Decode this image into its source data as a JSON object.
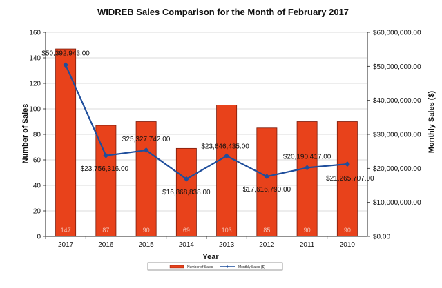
{
  "chart_data": {
    "type": "bar",
    "title": "WIDREB Sales Comparison for the Month of  February 2017",
    "xlabel": "Year",
    "ylabel_left": "Number of Sales",
    "ylabel_right": "Monthly Sales ($)",
    "categories": [
      "2017",
      "2016",
      "2015",
      "2014",
      "2013",
      "2012",
      "2011",
      "2010"
    ],
    "y_left_ticks": [
      "0",
      "20",
      "40",
      "60",
      "80",
      "100",
      "120",
      "140",
      "160"
    ],
    "y_right_ticks": [
      "$0.00",
      "$10,000,000.00",
      "$20,000,000.00",
      "$30,000,000.00",
      "$40,000,000.00",
      "$50,000,000.00",
      "$60,000,000.00"
    ],
    "ylim_left": [
      0,
      160
    ],
    "ylim_right": [
      0,
      60000000
    ],
    "grid": "horizontal",
    "legend_position": "bottom",
    "colors": {
      "bar": "#e8421b",
      "bar_edge": "#7a1a0a",
      "line": "#1f4e9c",
      "grid": "#cfcfcf"
    },
    "series": [
      {
        "name": "Number of Sales",
        "type": "bar",
        "axis": "left",
        "values": [
          147,
          87,
          90,
          69,
          103,
          85,
          90,
          90
        ],
        "labels": [
          "147",
          "87",
          "90",
          "69",
          "103",
          "85",
          "90",
          "90"
        ]
      },
      {
        "name": "Monthly Sales ($)",
        "type": "line",
        "axis": "right",
        "values": [
          50392943,
          23756316,
          25327742,
          16868838,
          23646435,
          17616790,
          20190417,
          21265707
        ],
        "labels": [
          "$50,392,943.00",
          "$23,756,316.00",
          "$25,327,742.00",
          "$16,868,838.00",
          "$23,646,435.00",
          "$17,616,790.00",
          "$20,190,417.00",
          "$21,265,707.00"
        ]
      }
    ]
  }
}
